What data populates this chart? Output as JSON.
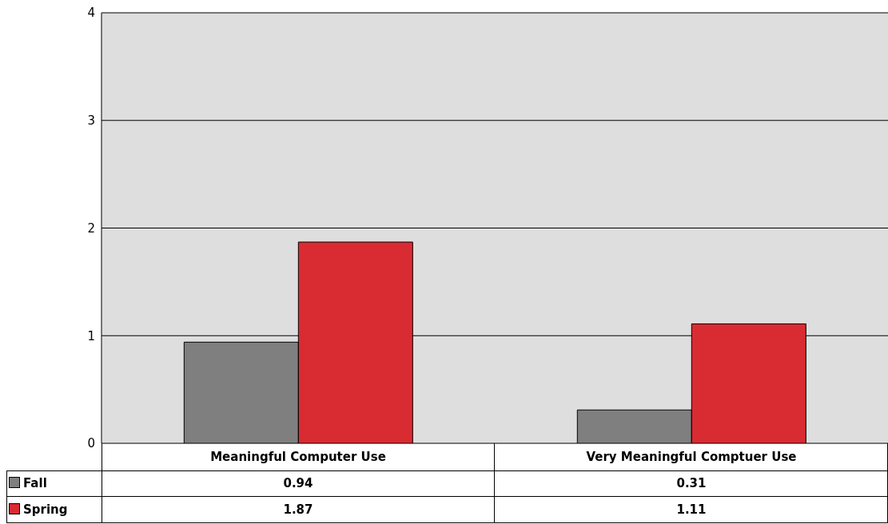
{
  "chart_data": {
    "type": "bar",
    "categories": [
      "Meaningful Computer Use",
      "Very Meaningful Comptuer Use"
    ],
    "series": [
      {
        "name": "Fall",
        "color": "#7f7f7f",
        "values": [
          0.94,
          0.31
        ]
      },
      {
        "name": "Spring",
        "color": "#d92b32",
        "values": [
          1.87,
          1.11
        ]
      }
    ],
    "ylim": [
      0,
      4
    ],
    "yticks": [
      0,
      1,
      2,
      3,
      4
    ],
    "grid": "y",
    "legend": "bottom",
    "data_labels": true
  }
}
